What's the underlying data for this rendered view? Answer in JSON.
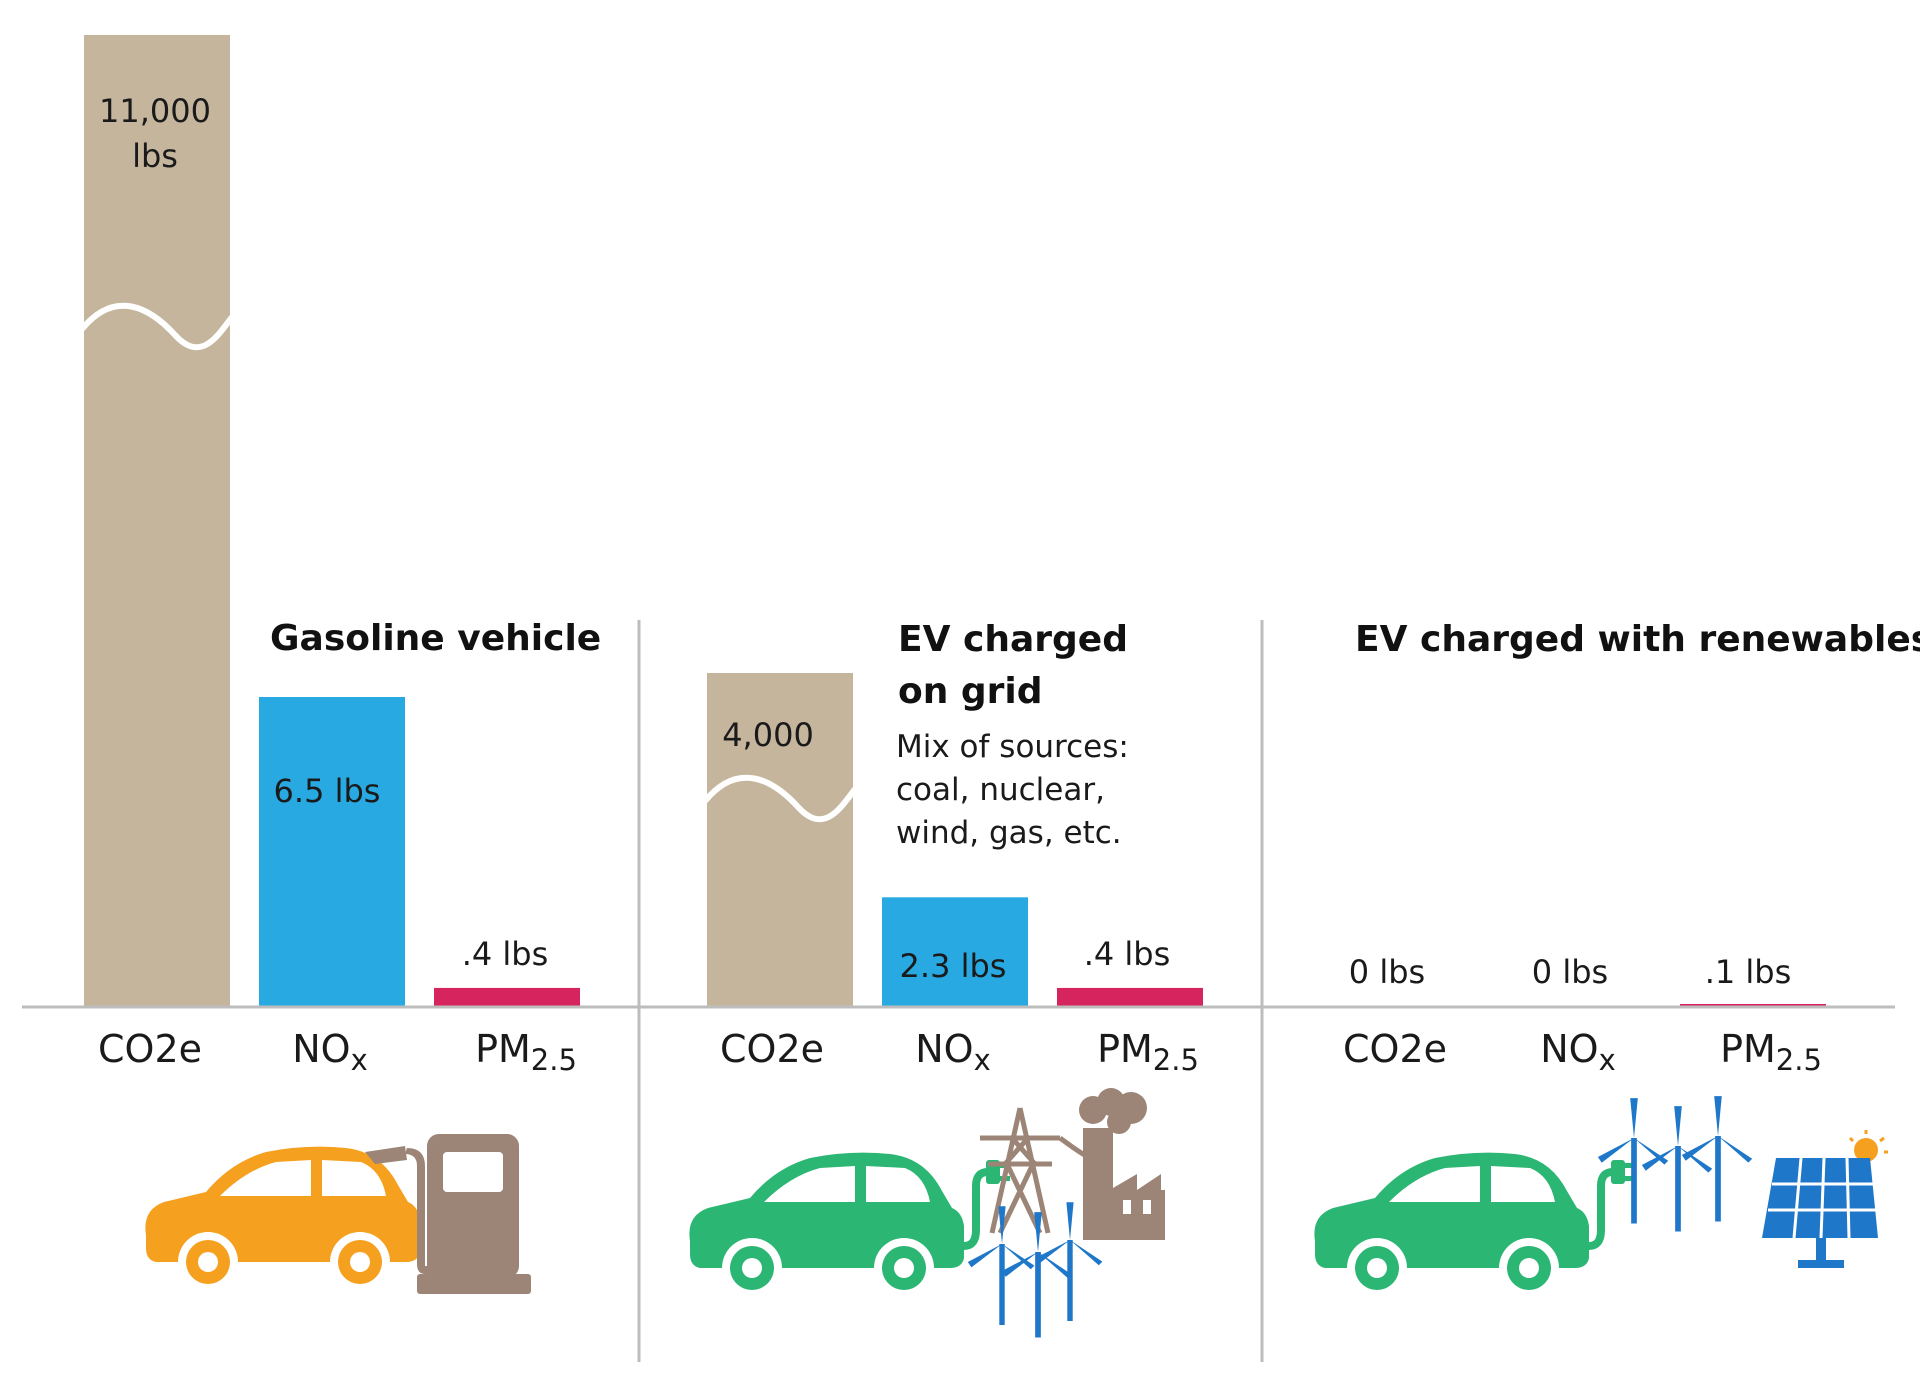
{
  "chart_data": {
    "type": "bar",
    "units": "lbs",
    "categories": [
      "CO2e",
      "NOx",
      "PM2.5"
    ],
    "category_labels": [
      {
        "main": "CO2e",
        "sub": ""
      },
      {
        "main": "NO",
        "sub": "x"
      },
      {
        "main": "PM",
        "sub": "2.5"
      }
    ],
    "axis_break_on": "CO2e",
    "groups": [
      {
        "title_lines": [
          "Gasoline vehicle"
        ],
        "note_lines": [],
        "values": [
          11000,
          6.5,
          0.4
        ],
        "value_labels": [
          [
            "11,000",
            "lbs"
          ],
          [
            "6.5 lbs"
          ],
          [
            ".4 lbs"
          ]
        ],
        "icons": [
          "orange-car-icon",
          "gas-pump-icon"
        ]
      },
      {
        "title_lines": [
          "EV charged",
          "on grid"
        ],
        "note_lines": [
          "Mix of sources:",
          "coal, nuclear,",
          "wind, gas, etc."
        ],
        "values": [
          4000,
          2.3,
          0.4
        ],
        "value_labels": [
          [
            "4,000"
          ],
          [
            "2.3 lbs"
          ],
          [
            ".4 lbs"
          ]
        ],
        "icons": [
          "green-ev-car-icon",
          "power-tower-icon",
          "factory-icon",
          "wind-turbines-icon"
        ]
      },
      {
        "title_lines": [
          "EV charged with renewables"
        ],
        "note_lines": [],
        "values": [
          0,
          0,
          0.1
        ],
        "value_labels": [
          [
            "0 lbs"
          ],
          [
            "0 lbs"
          ],
          [
            ".1 lbs"
          ]
        ],
        "icons": [
          "green-ev-car-icon",
          "wind-turbines-icon",
          "solar-panel-icon"
        ]
      }
    ]
  },
  "colors": {
    "co2e": "#c4b59c",
    "nox": "#29a9e1",
    "pm25": "#d6245e",
    "gas_car": "#f5a01e",
    "ev_car": "#2bb673",
    "pump": "#9c8577",
    "renewables": "#1f77c9",
    "axis": "#bdbdbd"
  }
}
